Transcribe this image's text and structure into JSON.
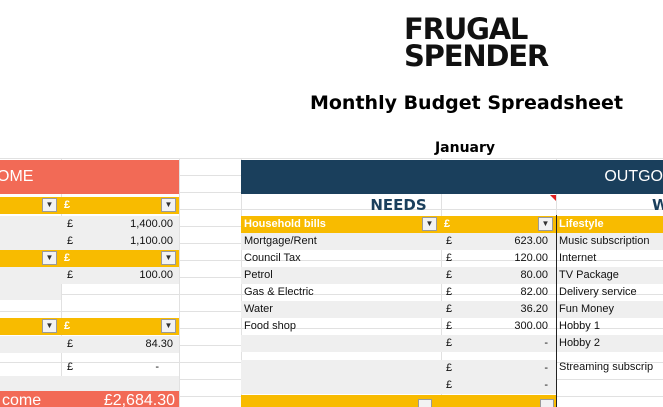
{
  "brand": {
    "line1": "FRUGAL",
    "line2": "SPENDER"
  },
  "sheet": {
    "title": "Monthly Budget Spreadsheet",
    "month": "January"
  },
  "income": {
    "banner": "OME",
    "header1_label": "£",
    "rows1": [
      {
        "cur": "£",
        "value": "1,400.00"
      },
      {
        "cur": "£",
        "value": "1,100.00"
      }
    ],
    "header2_label": "£",
    "rows2": [
      {
        "cur": "£",
        "value": "100.00"
      }
    ],
    "header3_label": "£",
    "rows3": [
      {
        "cur": "£",
        "value": "84.30"
      },
      {
        "cur": "£",
        "value": "-"
      }
    ],
    "total_label": "come",
    "total_value": "£2,684.30"
  },
  "outgoings": {
    "banner": "OUTGO",
    "needs_title": "NEEDS",
    "wants_title_fragment": "W",
    "needs_header": {
      "label": "Household bills",
      "currency": "£"
    },
    "needs_rows": [
      {
        "label": "Mortgage/Rent",
        "cur": "£",
        "value": "623.00"
      },
      {
        "label": "Council Tax",
        "cur": "£",
        "value": "120.00"
      },
      {
        "label": "Petrol",
        "cur": "£",
        "value": "80.00"
      },
      {
        "label": "Gas & Electric",
        "cur": "£",
        "value": "82.00"
      },
      {
        "label": "Water",
        "cur": "£",
        "value": "36.20"
      },
      {
        "label": "Food shop",
        "cur": "£",
        "value": "300.00"
      },
      {
        "label": "",
        "cur": "£",
        "value": "-"
      },
      {
        "label": "",
        "cur": "£",
        "value": "-"
      },
      {
        "label": "",
        "cur": "£",
        "value": "-"
      }
    ],
    "lifestyle_header": "Lifestyle",
    "lifestyle_rows": [
      "Music subscription",
      "Internet",
      "TV Package",
      "Delivery service",
      "Fun Money",
      "Hobby 1",
      "Hobby 2",
      "Streaming subscrip"
    ]
  },
  "icons": {
    "dropdown": "▼"
  },
  "colors": {
    "income": "#f26a56",
    "outgoings": "#1a3f5c",
    "header": "#f8bb00"
  }
}
